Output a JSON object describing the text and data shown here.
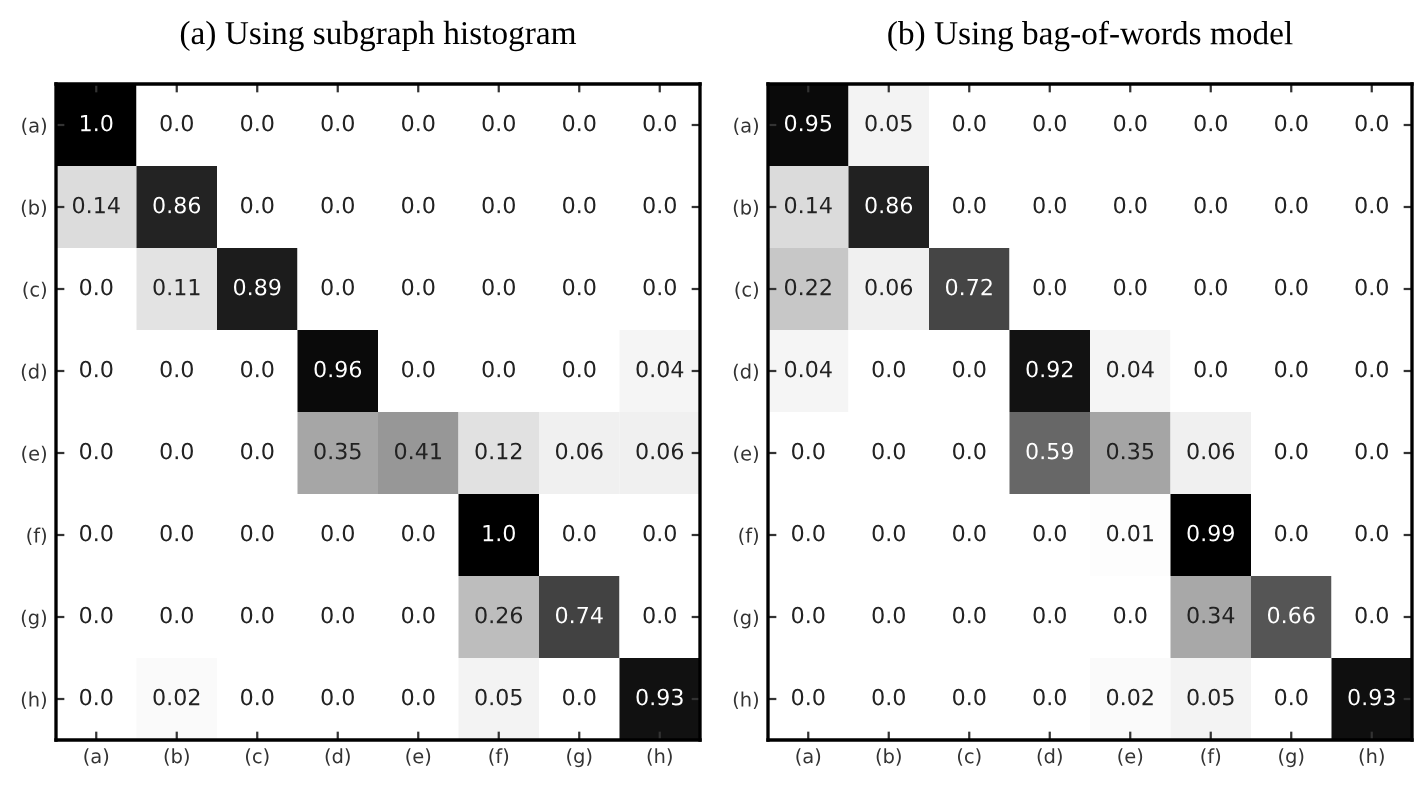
{
  "chart_data": [
    {
      "type": "heatmap",
      "title": "(a) Using subgraph histogram",
      "categories": [
        "(a)",
        "(b)",
        "(c)",
        "(d)",
        "(e)",
        "(f)",
        "(g)",
        "(h)"
      ],
      "y_categories": [
        "(a)",
        "(b)",
        "(c)",
        "(d)",
        "(e)",
        "(f)",
        "(g)",
        "(h)"
      ],
      "cells": [
        [
          1.0,
          0,
          0,
          0,
          0,
          0,
          0,
          0
        ],
        [
          0.14,
          0.86,
          0,
          0,
          0,
          0,
          0,
          0
        ],
        [
          0,
          0.11,
          0.89,
          0,
          0,
          0,
          0,
          0
        ],
        [
          0,
          0,
          0,
          0.96,
          0,
          0,
          0,
          0.04
        ],
        [
          0,
          0,
          0,
          0.35,
          0.41,
          0.12,
          0.06,
          0.06
        ],
        [
          0,
          0,
          0,
          0,
          0,
          1.0,
          0,
          0
        ],
        [
          0,
          0,
          0,
          0,
          0,
          0.26,
          0.74,
          0
        ],
        [
          0,
          0.02,
          0,
          0,
          0,
          0.05,
          0,
          0.93
        ]
      ],
      "cell_labels": [
        [
          "1.0",
          "0.0",
          "0.0",
          "0.0",
          "0.0",
          "0.0",
          "0.0",
          "0.0"
        ],
        [
          "0.14",
          "0.86",
          "0.0",
          "0.0",
          "0.0",
          "0.0",
          "0.0",
          "0.0"
        ],
        [
          "0.0",
          "0.11",
          "0.89",
          "0.0",
          "0.0",
          "0.0",
          "0.0",
          "0.0"
        ],
        [
          "0.0",
          "0.0",
          "0.0",
          "0.96",
          "0.0",
          "0.0",
          "0.0",
          "0.04"
        ],
        [
          "0.0",
          "0.0",
          "0.0",
          "0.35",
          "0.41",
          "0.12",
          "0.06",
          "0.06"
        ],
        [
          "0.0",
          "0.0",
          "0.0",
          "0.0",
          "0.0",
          "1.0",
          "0.0",
          "0.0"
        ],
        [
          "0.0",
          "0.0",
          "0.0",
          "0.0",
          "0.0",
          "0.26",
          "0.74",
          "0.0"
        ],
        [
          "0.0",
          "0.02",
          "0.0",
          "0.0",
          "0.0",
          "0.05",
          "0.0",
          "0.93"
        ]
      ]
    },
    {
      "type": "heatmap",
      "title": "(b) Using bag-of-words model",
      "categories": [
        "(a)",
        "(b)",
        "(c)",
        "(d)",
        "(e)",
        "(f)",
        "(g)",
        "(h)"
      ],
      "y_categories": [
        "(a)",
        "(b)",
        "(c)",
        "(d)",
        "(e)",
        "(f)",
        "(g)",
        "(h)"
      ],
      "cells": [
        [
          0.95,
          0.05,
          0,
          0,
          0,
          0,
          0,
          0
        ],
        [
          0.14,
          0.86,
          0,
          0,
          0,
          0,
          0,
          0
        ],
        [
          0.22,
          0.06,
          0.72,
          0,
          0,
          0,
          0,
          0
        ],
        [
          0.04,
          0,
          0,
          0.92,
          0.04,
          0,
          0,
          0
        ],
        [
          0,
          0,
          0,
          0.59,
          0.35,
          0.06,
          0,
          0
        ],
        [
          0,
          0,
          0,
          0,
          0.01,
          0.99,
          0,
          0
        ],
        [
          0,
          0,
          0,
          0,
          0,
          0.34,
          0.66,
          0
        ],
        [
          0,
          0,
          0,
          0,
          0.02,
          0.05,
          0,
          0.93
        ]
      ],
      "cell_labels": [
        [
          "0.95",
          "0.05",
          "0.0",
          "0.0",
          "0.0",
          "0.0",
          "0.0",
          "0.0"
        ],
        [
          "0.14",
          "0.86",
          "0.0",
          "0.0",
          "0.0",
          "0.0",
          "0.0",
          "0.0"
        ],
        [
          "0.22",
          "0.06",
          "0.72",
          "0.0",
          "0.0",
          "0.0",
          "0.0",
          "0.0"
        ],
        [
          "0.04",
          "0.0",
          "0.0",
          "0.92",
          "0.04",
          "0.0",
          "0.0",
          "0.0"
        ],
        [
          "0.0",
          "0.0",
          "0.0",
          "0.59",
          "0.35",
          "0.06",
          "0.0",
          "0.0"
        ],
        [
          "0.0",
          "0.0",
          "0.0",
          "0.0",
          "0.01",
          "0.99",
          "0.0",
          "0.0"
        ],
        [
          "0.0",
          "0.0",
          "0.0",
          "0.0",
          "0.0",
          "0.34",
          "0.66",
          "0.0"
        ],
        [
          "0.0",
          "0.0",
          "0.0",
          "0.0",
          "0.02",
          "0.05",
          "0.0",
          "0.93"
        ]
      ]
    }
  ]
}
